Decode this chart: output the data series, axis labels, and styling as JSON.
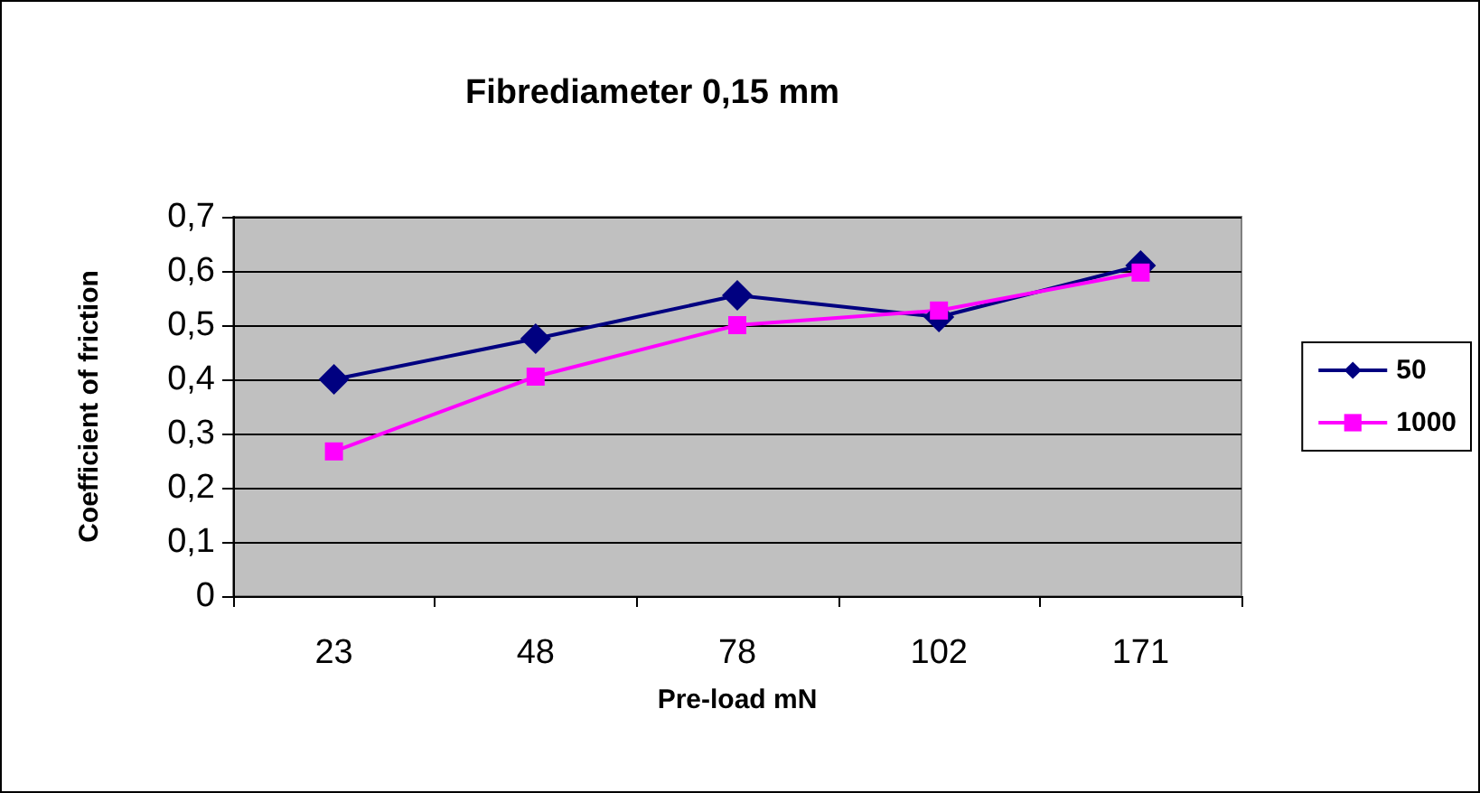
{
  "chart_data": {
    "type": "line",
    "title": "Fibrediameter 0,15 mm",
    "xlabel": "Pre-load mN",
    "ylabel": "Coefficient of friction",
    "categories": [
      "23",
      "48",
      "78",
      "102",
      "171"
    ],
    "series": [
      {
        "name": "50",
        "color": "#000080",
        "marker": "diamond",
        "values": [
          0.4,
          0.475,
          0.555,
          0.515,
          0.61
        ]
      },
      {
        "name": "1000",
        "color": "#ff00ff",
        "marker": "square",
        "values": [
          0.267,
          0.405,
          0.5,
          0.527,
          0.597
        ]
      }
    ],
    "ylim": [
      0,
      0.7
    ],
    "yticks": [
      0,
      {
        "value": 0.1,
        "label": "0,1"
      },
      {
        "value": 0.2,
        "label": "0,2"
      },
      {
        "value": 0.3,
        "label": "0,3"
      },
      {
        "value": 0.4,
        "label": "0,4"
      },
      {
        "value": 0.5,
        "label": "0,5"
      },
      {
        "value": 0.6,
        "label": "0,6"
      },
      {
        "value": 0.7,
        "label": "0,7"
      }
    ],
    "grid": "y",
    "legend": "right",
    "line_style": "solid"
  }
}
